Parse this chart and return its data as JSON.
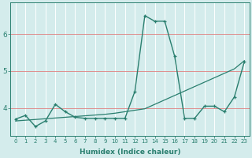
{
  "xlabel": "Humidex (Indice chaleur)",
  "bg_color": "#d4ecec",
  "grid_color": "#ffffff",
  "red_line_color": "#e08080",
  "line_color": "#2a7f6f",
  "x_ticks": [
    0,
    1,
    2,
    3,
    4,
    5,
    6,
    7,
    8,
    9,
    10,
    11,
    12,
    13,
    14,
    15,
    16,
    17,
    18,
    19,
    20,
    21,
    22,
    23
  ],
  "y_ticks": [
    4,
    5,
    6
  ],
  "xlim": [
    -0.5,
    23.5
  ],
  "ylim": [
    3.25,
    6.85
  ],
  "series1_x": [
    0,
    1,
    2,
    3,
    4,
    5,
    6,
    7,
    8,
    9,
    10,
    11,
    12,
    13,
    14,
    15,
    16,
    17,
    18,
    19,
    20,
    21,
    22,
    23
  ],
  "series1_y": [
    3.7,
    3.8,
    3.5,
    3.65,
    4.1,
    3.9,
    3.75,
    3.72,
    3.72,
    3.72,
    3.72,
    3.72,
    4.45,
    6.5,
    6.35,
    6.35,
    5.4,
    3.72,
    3.72,
    4.05,
    4.05,
    3.9,
    4.3,
    5.25
  ],
  "series2_x": [
    0,
    1,
    2,
    3,
    4,
    5,
    6,
    7,
    8,
    9,
    10,
    11,
    12,
    13,
    14,
    15,
    16,
    17,
    18,
    19,
    20,
    21,
    22,
    23
  ],
  "series2_y": [
    3.65,
    3.67,
    3.69,
    3.71,
    3.73,
    3.75,
    3.77,
    3.79,
    3.81,
    3.83,
    3.86,
    3.9,
    3.94,
    3.98,
    4.1,
    4.22,
    4.34,
    4.46,
    4.58,
    4.7,
    4.82,
    4.94,
    5.06,
    5.28
  ]
}
